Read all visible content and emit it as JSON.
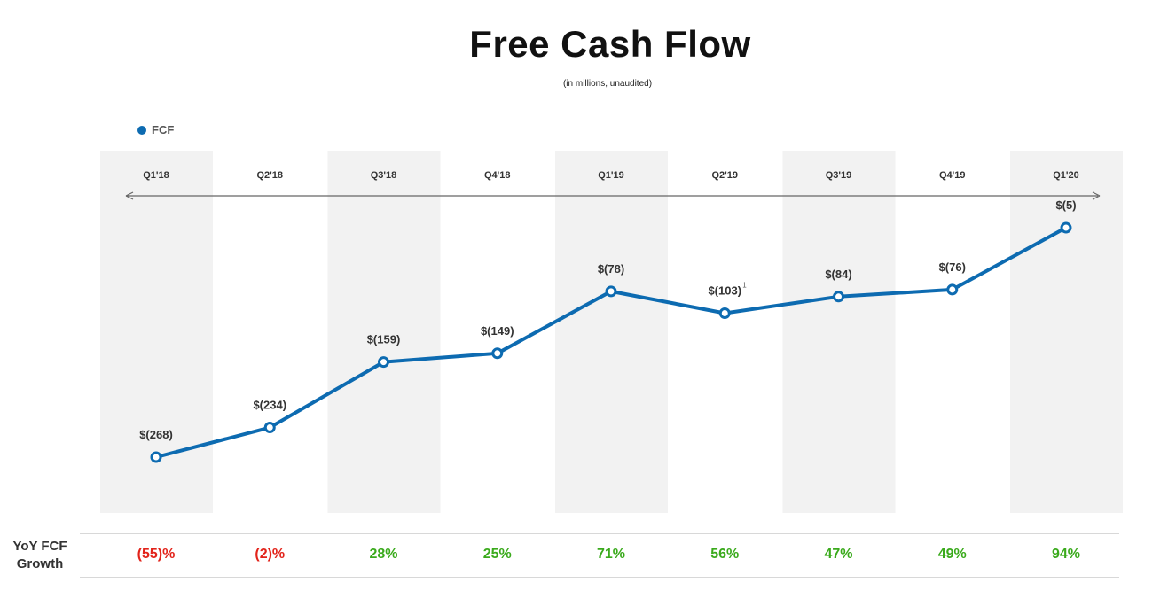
{
  "header": {
    "title": "Free Cash Flow",
    "subtitle": "(in millions, unaudited)"
  },
  "legend": {
    "label": "FCF",
    "icon": "legend-dot-icon"
  },
  "colors": {
    "series": "#0d6bb1",
    "band": "#f2f2f2",
    "negative": "#e2231a",
    "positive": "#3aaa1c",
    "label": "#333333"
  },
  "chart_data": {
    "type": "line",
    "title": "Free Cash Flow",
    "subtitle": "(in millions, unaudited)",
    "categories": [
      "Q1'18",
      "Q2'18",
      "Q3'18",
      "Q4'18",
      "Q1'19",
      "Q2'19",
      "Q3'19",
      "Q4'19",
      "Q1'20"
    ],
    "series": [
      {
        "name": "FCF",
        "values": [
          -268,
          -234,
          -159,
          -149,
          -78,
          -103,
          -84,
          -76,
          -5
        ],
        "labels": [
          "$(268)",
          "$(234)",
          "$(159)",
          "$(149)",
          "$(78)",
          "$(103)",
          "$(84)",
          "$(76)",
          "$(5)"
        ]
      }
    ],
    "annotations": [
      {
        "category": "Q2'19",
        "text": "1"
      }
    ],
    "legend_position": "top-left",
    "alternating_column_bands": true,
    "time_arrow": true
  },
  "growth_row": {
    "label_line1": "YoY FCF",
    "label_line2": "Growth",
    "values": [
      "(55)%",
      "(2)%",
      "28%",
      "25%",
      "71%",
      "56%",
      "47%",
      "49%",
      "94%"
    ],
    "is_negative": [
      true,
      true,
      false,
      false,
      false,
      false,
      false,
      false,
      false
    ]
  }
}
